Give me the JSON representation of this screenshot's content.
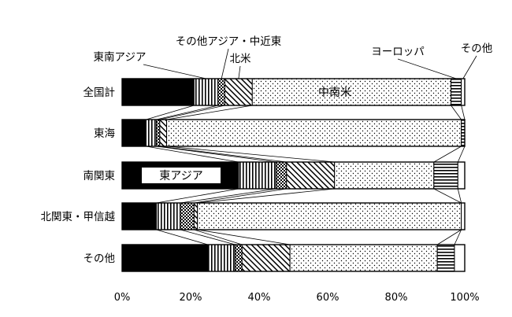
{
  "chart_data": {
    "type": "bar",
    "orientation": "horizontal",
    "stacked": true,
    "percent": true,
    "xlim": [
      0,
      100
    ],
    "xticks": [
      "0%",
      "20%",
      "40%",
      "60%",
      "80%",
      "100%"
    ],
    "categories": [
      "全国計",
      "東海",
      "南関東",
      "北関東・甲信越",
      "その他"
    ],
    "series": [
      {
        "name": "東アジア",
        "pattern": "solid",
        "values": [
          21,
          7,
          34,
          10,
          25
        ]
      },
      {
        "name": "東南アジア",
        "pattern": "vertical",
        "values": [
          7,
          3,
          11,
          7,
          8
        ]
      },
      {
        "name": "その他アジア・中近東",
        "pattern": "checker",
        "values": [
          2,
          1,
          3,
          4,
          2
        ]
      },
      {
        "name": "北米",
        "pattern": "diagonal",
        "values": [
          8,
          2,
          14,
          1,
          14
        ]
      },
      {
        "name": "中南米",
        "pattern": "dots",
        "values": [
          58,
          86,
          29,
          77,
          43
        ]
      },
      {
        "name": "ヨーロッパ",
        "pattern": "horizontal",
        "values": [
          3,
          1,
          7,
          0,
          5
        ]
      },
      {
        "name": "その他",
        "pattern": "blank",
        "values": [
          1,
          0,
          2,
          1,
          3
        ]
      }
    ],
    "legend_labels": {
      "top": [
        {
          "series": 1,
          "text": "東南アジア"
        },
        {
          "series": 2,
          "text": "その他アジア・中近東"
        },
        {
          "series": 3,
          "text": "北米"
        },
        {
          "series": 5,
          "text": "ヨーロッパ"
        },
        {
          "series": 6,
          "text": "その他"
        }
      ],
      "inside": [
        {
          "series": 4,
          "row": 0,
          "text": "中南米"
        },
        {
          "series": 0,
          "row": 2,
          "text": "東アジア"
        }
      ]
    },
    "colors": {
      "ink": "#000000",
      "paper": "#ffffff"
    }
  }
}
